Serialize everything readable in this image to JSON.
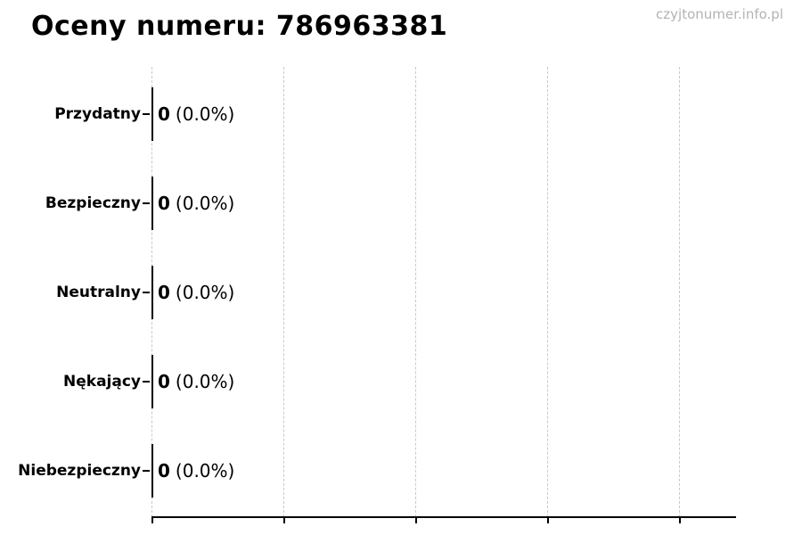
{
  "header": {
    "title": "Oceny numeru: 786963381",
    "watermark": "czyjtonumer.info.pl"
  },
  "chart_data": {
    "type": "bar",
    "orientation": "horizontal",
    "title": "Oceny numeru: 786963381",
    "categories": [
      "Przydatny",
      "Bezpieczny",
      "Neutralny",
      "Nękający",
      "Niebezpieczny"
    ],
    "values": [
      0,
      0,
      0,
      0,
      0
    ],
    "percent_labels": [
      "(0.0%)",
      "(0.0%)",
      "(0.0%)",
      "(0.0%)",
      "(0.0%)"
    ],
    "annotation_format": "count (percent)",
    "xlim": [
      0,
      1
    ],
    "x_tick_count": 5,
    "x_tick_labels_visible": false,
    "grid": "vertical-dashed",
    "legend": "none",
    "colors": {
      "background": "#ffffff",
      "bar_edge": "#000000",
      "grid": "#c9c9c9",
      "axis": "#000000",
      "text": "#000000",
      "watermark": "#b3b3b3"
    }
  }
}
